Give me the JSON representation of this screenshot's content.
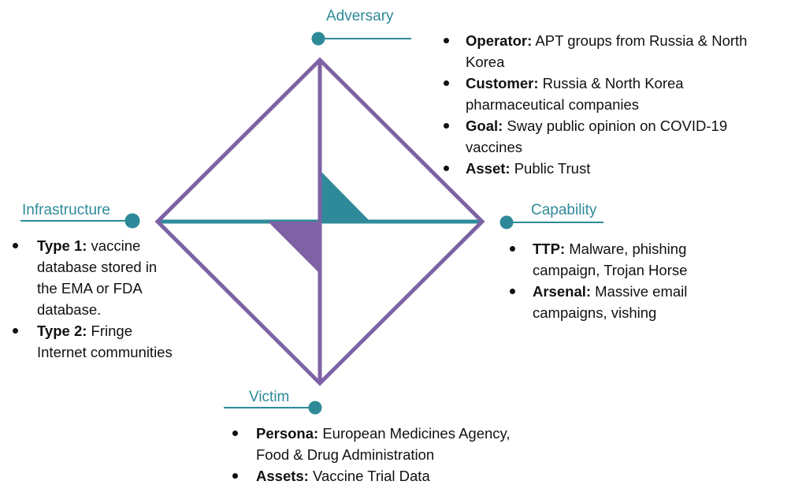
{
  "diagram": {
    "colors": {
      "teal": "#2e8a99",
      "purple": "#7e62a5",
      "text": "#111111",
      "bullet": "#111111"
    },
    "nodes": {
      "adversary": {
        "title": "Adversary",
        "items": [
          {
            "key": "Operator:",
            "text": "APT groups from Russia & North Korea"
          },
          {
            "key": "Customer:",
            "text": "Russia & North Korea pharmaceutical companies"
          },
          {
            "key": "Goal:",
            "text": "Sway public opinion on COVID-19 vaccines"
          },
          {
            "key": "Asset:",
            "text": "Public Trust"
          }
        ]
      },
      "infrastructure": {
        "title": "Infrastructure",
        "items": [
          {
            "key": "Type 1:",
            "text": "vaccine database stored in the EMA or FDA database."
          },
          {
            "key": "Type 2:",
            "text": "Fringe Internet communities"
          }
        ]
      },
      "capability": {
        "title": "Capability",
        "items": [
          {
            "key": "TTP:",
            "text": "Malware, phishing campaign, Trojan Horse"
          },
          {
            "key": "Arsenal:",
            "text": "Massive email campaigns, vishing"
          }
        ]
      },
      "victim": {
        "title": "Victim",
        "items": [
          {
            "key": "Persona:",
            "text": "European Medicines Agency, Food & Drug Administration"
          },
          {
            "key": "Assets:",
            "text": "Vaccine Trial Data"
          }
        ]
      }
    }
  }
}
